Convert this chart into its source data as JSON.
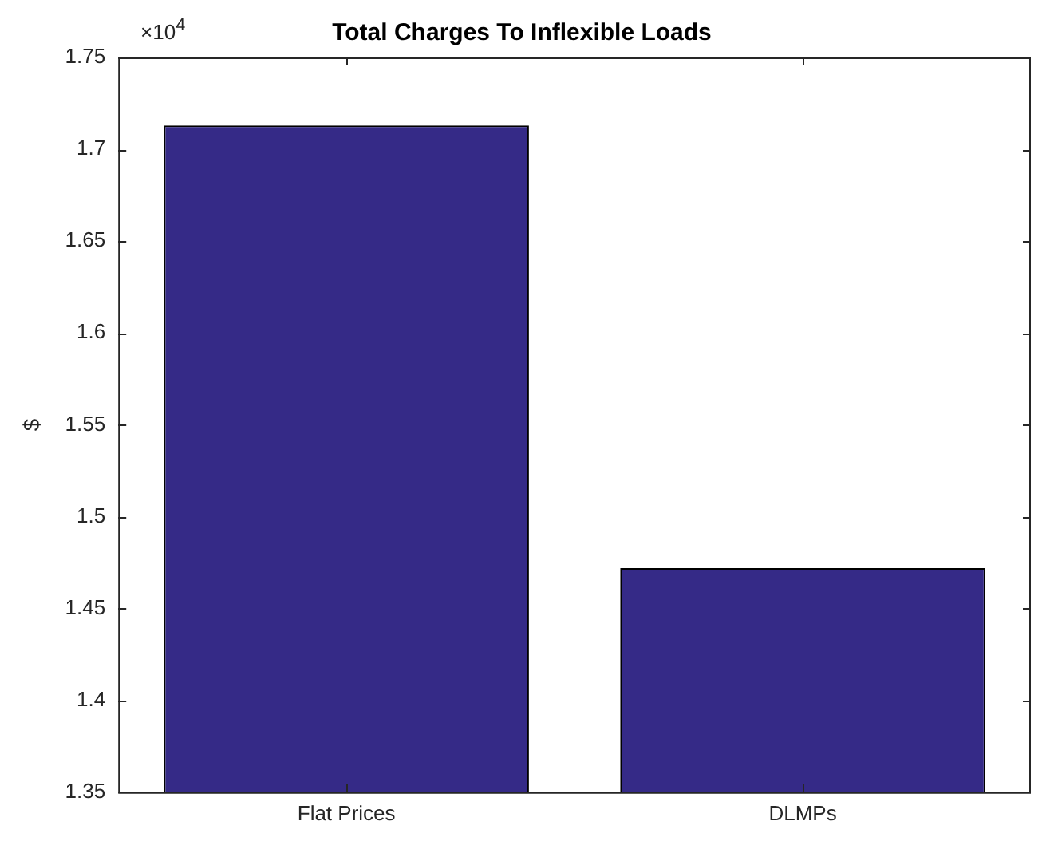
{
  "chart_data": {
    "type": "bar",
    "title": "Total Charges To Inflexible Loads",
    "ylabel": "$",
    "categories": [
      "Flat Prices",
      "DLMPs"
    ],
    "series": [
      {
        "color": "#352a87",
        "values": [
          1.713,
          1.472
        ]
      }
    ],
    "ylim": [
      1.35,
      1.75
    ],
    "yticks": [
      1.35,
      1.4,
      1.45,
      1.5,
      1.55,
      1.6,
      1.65,
      1.7,
      1.75
    ],
    "annotations": [
      "×10$^{4}$"
    ],
    "grid": false,
    "legend": false
  }
}
